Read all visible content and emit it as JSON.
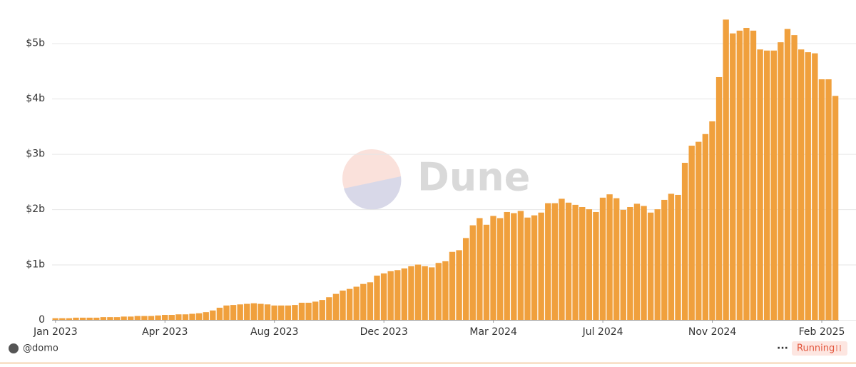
{
  "chart_data": {
    "type": "bar",
    "color": "#f0a03d",
    "grid": true,
    "ylim": [
      0,
      5.5
    ],
    "yticks": [
      0,
      {
        "value": 1,
        "label": "$1b"
      },
      {
        "value": 2,
        "label": "$2b"
      },
      {
        "value": 3,
        "label": "$3b"
      },
      {
        "value": 4,
        "label": "$4b"
      },
      {
        "value": 5,
        "label": "$5b"
      }
    ],
    "categories": [
      "Jan 2023",
      null,
      null,
      null,
      null,
      null,
      null,
      null,
      null,
      null,
      null,
      null,
      null,
      null,
      null,
      null,
      "Apr 2023",
      null,
      null,
      null,
      null,
      null,
      null,
      null,
      null,
      null,
      null,
      null,
      null,
      null,
      null,
      null,
      "Aug 2023",
      null,
      null,
      null,
      null,
      null,
      null,
      null,
      null,
      null,
      null,
      null,
      null,
      null,
      null,
      null,
      "Dec 2023",
      null,
      null,
      null,
      null,
      null,
      null,
      null,
      null,
      null,
      null,
      null,
      null,
      null,
      null,
      null,
      "Mar 2024",
      null,
      null,
      null,
      null,
      null,
      null,
      null,
      null,
      null,
      null,
      null,
      null,
      null,
      null,
      null,
      "Jul 2024",
      null,
      null,
      null,
      null,
      null,
      null,
      null,
      null,
      null,
      null,
      null,
      null,
      null,
      null,
      null,
      "Nov 2024",
      null,
      null,
      null,
      null,
      null,
      null,
      null,
      null,
      null,
      null,
      null,
      null,
      null,
      null,
      null,
      "Feb 2025",
      null,
      null
    ],
    "values": [
      0.03,
      0.03,
      0.03,
      0.04,
      0.04,
      0.04,
      0.04,
      0.05,
      0.05,
      0.05,
      0.06,
      0.06,
      0.07,
      0.07,
      0.07,
      0.08,
      0.09,
      0.09,
      0.1,
      0.1,
      0.11,
      0.12,
      0.14,
      0.17,
      0.22,
      0.26,
      0.27,
      0.28,
      0.29,
      0.3,
      0.29,
      0.28,
      0.26,
      0.26,
      0.26,
      0.27,
      0.31,
      0.31,
      0.33,
      0.36,
      0.41,
      0.47,
      0.53,
      0.56,
      0.6,
      0.65,
      0.68,
      0.8,
      0.84,
      0.88,
      0.9,
      0.93,
      0.97,
      1.0,
      0.97,
      0.95,
      1.03,
      1.06,
      1.23,
      1.26,
      1.48,
      1.71,
      1.84,
      1.72,
      1.88,
      1.84,
      1.95,
      1.93,
      1.97,
      1.85,
      1.89,
      1.94,
      2.11,
      2.11,
      2.19,
      2.12,
      2.08,
      2.04,
      2.0,
      1.95,
      2.21,
      2.27,
      2.2,
      1.99,
      2.04,
      2.1,
      2.06,
      1.94,
      2.0,
      2.17,
      2.28,
      2.26,
      2.84,
      3.15,
      3.22,
      3.36,
      3.59,
      4.39,
      5.43,
      5.18,
      5.23,
      5.28,
      5.23,
      4.89,
      4.87,
      4.87,
      5.02,
      5.26,
      5.15,
      4.89,
      4.84,
      4.82,
      4.35,
      4.35,
      4.05
    ]
  },
  "watermark": "Dune",
  "footer": {
    "user": "@domo",
    "status": "Running"
  }
}
